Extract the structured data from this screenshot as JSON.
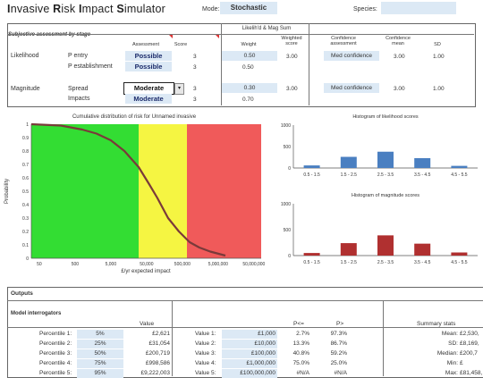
{
  "app": {
    "title_parts": [
      [
        "I",
        "b"
      ],
      [
        "nvasive ",
        ""
      ],
      [
        "R",
        "b"
      ],
      [
        "isk ",
        ""
      ],
      [
        "I",
        "b"
      ],
      [
        "mpact ",
        ""
      ],
      [
        "S",
        "b"
      ],
      [
        "imulator",
        ""
      ]
    ],
    "mode_label": "Mode:",
    "mode_value": "Stochastic",
    "species_label": "Species:",
    "species_value": ""
  },
  "assessment": {
    "section_title": "Subjective assessment by stage",
    "headers": {
      "assessment": "Assessment",
      "score": "Score",
      "likelihood_mag_sum": "Likelih'd & Mag Sum",
      "weight": "Weight",
      "weighted_score": "Weighted score",
      "confidence_assessment": "Confidence assessment",
      "confidence_mean": "Confidence mean",
      "sd": "SD"
    },
    "groups": {
      "likelihood": "Likelihood",
      "magnitude": "Magnitude"
    },
    "rows": [
      {
        "stage": "P entry",
        "assessment": "Possible",
        "score": "3",
        "weight": "0.50",
        "weighted": "3.00",
        "conf": "Med confidence",
        "conf_mean": "3.00",
        "sd": "1.00"
      },
      {
        "stage": "P establishment",
        "assessment": "Possible",
        "score": "3",
        "weight": "0.50",
        "weighted": "",
        "conf": "",
        "conf_mean": "",
        "sd": ""
      },
      {
        "stage": "Spread",
        "assessment": "Moderate",
        "score": "3",
        "weight": "0.30",
        "weighted": "3.00",
        "conf": "Med confidence",
        "conf_mean": "3.00",
        "sd": "1.00"
      },
      {
        "stage": "Impacts",
        "assessment": "Moderate",
        "score": "3",
        "weight": "0.70",
        "weighted": "",
        "conf": "",
        "conf_mean": "",
        "sd": ""
      }
    ]
  },
  "cdf_chart": {
    "title": "Cumulative distribution of risk for Unnamed invasive",
    "ylabel": "Probability",
    "xlabel": "£/yr expected impact",
    "yticks": [
      "1",
      "0.9",
      "0.8",
      "0.7",
      "0.6",
      "0.5",
      "0.4",
      "0.3",
      "0.2",
      "0.1",
      "0"
    ],
    "xticks": [
      "50",
      "500",
      "5,000",
      "50,000",
      "500,000",
      "5,000,000",
      "50,000,000"
    ],
    "zone_colors": [
      "#33dd33",
      "#f5f542",
      "#f05a5a"
    ]
  },
  "chart_data": [
    {
      "type": "line",
      "title": "Cumulative distribution of risk for Unnamed invasive",
      "xlabel": "£/yr expected impact",
      "ylabel": "Probability",
      "x_scale": "log",
      "x": [
        30,
        200,
        800,
        2000,
        5000,
        12000,
        30000,
        60000,
        100000,
        200000,
        400000,
        800000,
        1500000,
        3000000,
        8000000
      ],
      "values": [
        1.0,
        0.99,
        0.96,
        0.93,
        0.88,
        0.8,
        0.68,
        0.55,
        0.45,
        0.3,
        0.2,
        0.12,
        0.08,
        0.05,
        0.02
      ],
      "ylim": [
        0,
        1
      ],
      "grid": false
    },
    {
      "type": "bar",
      "title": "Histogram of likelihood scores",
      "categories": [
        "0.5 - 1.5",
        "1.5 - 2.5",
        "2.5 - 3.5",
        "3.5 - 4.5",
        "4.5 - 5.5"
      ],
      "values": [
        60,
        260,
        380,
        230,
        50
      ],
      "ylim": [
        0,
        1000
      ],
      "yticks": [
        "1000",
        "500",
        "0"
      ],
      "color": "#4a7fc1"
    },
    {
      "type": "bar",
      "title": "Histogram of magnitude scores",
      "categories": [
        "0.5 - 1.5",
        "1.5 - 2.5",
        "2.5 - 3.5",
        "3.5 - 4.5",
        "4.5 - 5.5"
      ],
      "values": [
        50,
        240,
        390,
        230,
        60
      ],
      "ylim": [
        0,
        1000
      ],
      "yticks": [
        "1000",
        "500",
        "0"
      ],
      "color": "#b03030"
    }
  ],
  "outputs": {
    "title": "Outputs",
    "interrogators_title": "Model interrogators",
    "value_header": "Value",
    "p_le_header": "P<=",
    "p_gt_header": "P>",
    "summary_header": "Summary stats",
    "percentiles": [
      {
        "label": "Percentile 1:",
        "pct": "5%",
        "value": "£2,621"
      },
      {
        "label": "Percentile 2:",
        "pct": "25%",
        "value": "£31,054"
      },
      {
        "label": "Percentile 3:",
        "pct": "50%",
        "value": "£200,719"
      },
      {
        "label": "Percentile 4:",
        "pct": "75%",
        "value": "£998,586"
      },
      {
        "label": "Percentile 5:",
        "pct": "95%",
        "value": "£9,222,003"
      }
    ],
    "values": [
      {
        "label": "Value 1:",
        "value": "£1,000",
        "ple": "2.7%",
        "pgt": "97.3%"
      },
      {
        "label": "Value 2:",
        "value": "£10,000",
        "ple": "13.3%",
        "pgt": "86.7%"
      },
      {
        "label": "Value 3:",
        "value": "£100,000",
        "ple": "40.8%",
        "pgt": "59.2%"
      },
      {
        "label": "Value 4:",
        "value": "£1,000,000",
        "ple": "75.0%",
        "pgt": "25.0%"
      },
      {
        "label": "Value 5:",
        "value": "£100,000,000",
        "ple": "#N/A",
        "pgt": "#N/A"
      }
    ],
    "summary": [
      {
        "label": "Mean:",
        "value": "£2,530,"
      },
      {
        "label": "SD:",
        "value": "£8,169,"
      },
      {
        "label": "Median:",
        "value": "£200,7"
      },
      {
        "label": "Min:",
        "value": "£"
      },
      {
        "label": "Max:",
        "value": "£81,458,"
      }
    ]
  }
}
